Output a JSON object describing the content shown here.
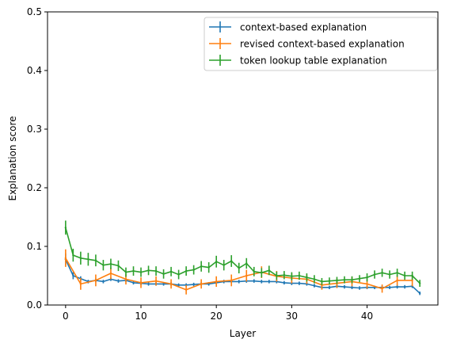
{
  "chart_data": {
    "type": "line",
    "title": "",
    "xlabel": "Layer",
    "ylabel": "Explanation score",
    "xlim": [
      -2.4,
      49.4
    ],
    "ylim": [
      0,
      0.5
    ],
    "xticks": [
      0,
      10,
      20,
      30,
      40
    ],
    "yticks": [
      0.0,
      0.1,
      0.2,
      0.3,
      0.4,
      0.5
    ],
    "xtick_labels": [
      "0",
      "10",
      "20",
      "30",
      "40"
    ],
    "ytick_labels": [
      "0.0",
      "0.1",
      "0.2",
      "0.3",
      "0.4",
      "0.5"
    ],
    "grid": false,
    "legend_position": "top-right",
    "series": [
      {
        "name": "context-based explanation",
        "color": "#1f77b4",
        "x": [
          0,
          1,
          2,
          3,
          4,
          5,
          6,
          7,
          8,
          9,
          10,
          11,
          12,
          13,
          14,
          15,
          16,
          17,
          18,
          19,
          20,
          21,
          22,
          23,
          24,
          25,
          26,
          27,
          28,
          29,
          30,
          31,
          32,
          33,
          34,
          35,
          36,
          37,
          38,
          39,
          40,
          41,
          42,
          43,
          44,
          45,
          46,
          47
        ],
        "y": [
          0.078,
          0.05,
          0.045,
          0.04,
          0.042,
          0.04,
          0.044,
          0.041,
          0.042,
          0.038,
          0.037,
          0.036,
          0.036,
          0.036,
          0.036,
          0.034,
          0.034,
          0.035,
          0.036,
          0.036,
          0.038,
          0.04,
          0.04,
          0.04,
          0.041,
          0.041,
          0.04,
          0.04,
          0.04,
          0.038,
          0.037,
          0.037,
          0.036,
          0.033,
          0.03,
          0.03,
          0.032,
          0.031,
          0.03,
          0.029,
          0.03,
          0.03,
          0.03,
          0.03,
          0.031,
          0.031,
          0.032,
          0.02
        ],
        "err": [
          0.01,
          0.006,
          0.004,
          0.003,
          0.003,
          0.003,
          0.003,
          0.003,
          0.003,
          0.003,
          0.003,
          0.003,
          0.003,
          0.003,
          0.003,
          0.003,
          0.003,
          0.003,
          0.003,
          0.003,
          0.003,
          0.003,
          0.003,
          0.003,
          0.003,
          0.003,
          0.003,
          0.003,
          0.003,
          0.003,
          0.003,
          0.003,
          0.003,
          0.003,
          0.003,
          0.003,
          0.003,
          0.003,
          0.003,
          0.003,
          0.003,
          0.003,
          0.003,
          0.003,
          0.003,
          0.003,
          0.003,
          0.003
        ]
      },
      {
        "name": "revised context-based explanation",
        "color": "#ff7f0e",
        "x": [
          0,
          2,
          4,
          6,
          8,
          10,
          12,
          14,
          16,
          18,
          20,
          22,
          24,
          26,
          28,
          30,
          32,
          34,
          36,
          38,
          40,
          42,
          44,
          46
        ],
        "y": [
          0.08,
          0.036,
          0.042,
          0.054,
          0.044,
          0.038,
          0.041,
          0.036,
          0.026,
          0.036,
          0.04,
          0.042,
          0.05,
          0.056,
          0.049,
          0.046,
          0.044,
          0.034,
          0.037,
          0.04,
          0.036,
          0.028,
          0.042,
          0.042
        ],
        "err": [
          0.015,
          0.01,
          0.01,
          0.01,
          0.009,
          0.009,
          0.008,
          0.008,
          0.008,
          0.008,
          0.009,
          0.01,
          0.01,
          0.01,
          0.009,
          0.009,
          0.008,
          0.008,
          0.008,
          0.008,
          0.008,
          0.007,
          0.009,
          0.01
        ]
      },
      {
        "name": "token lookup table explanation",
        "color": "#2ca02c",
        "x": [
          0,
          1,
          2,
          3,
          4,
          5,
          6,
          7,
          8,
          9,
          10,
          11,
          12,
          13,
          14,
          15,
          16,
          17,
          18,
          19,
          20,
          21,
          22,
          23,
          24,
          25,
          26,
          27,
          28,
          29,
          30,
          31,
          32,
          33,
          34,
          35,
          36,
          37,
          38,
          39,
          40,
          41,
          42,
          43,
          44,
          45,
          46,
          47
        ],
        "y": [
          0.132,
          0.085,
          0.08,
          0.078,
          0.076,
          0.068,
          0.07,
          0.067,
          0.056,
          0.058,
          0.056,
          0.059,
          0.058,
          0.053,
          0.057,
          0.052,
          0.058,
          0.06,
          0.066,
          0.064,
          0.074,
          0.068,
          0.075,
          0.063,
          0.071,
          0.057,
          0.055,
          0.059,
          0.05,
          0.051,
          0.049,
          0.05,
          0.047,
          0.044,
          0.04,
          0.041,
          0.042,
          0.043,
          0.043,
          0.045,
          0.047,
          0.052,
          0.055,
          0.052,
          0.055,
          0.05,
          0.05,
          0.037
        ],
        "err": [
          0.012,
          0.011,
          0.011,
          0.011,
          0.01,
          0.009,
          0.009,
          0.009,
          0.008,
          0.008,
          0.008,
          0.008,
          0.008,
          0.008,
          0.008,
          0.008,
          0.008,
          0.008,
          0.009,
          0.009,
          0.01,
          0.009,
          0.01,
          0.009,
          0.009,
          0.008,
          0.008,
          0.008,
          0.007,
          0.007,
          0.007,
          0.007,
          0.007,
          0.007,
          0.006,
          0.006,
          0.006,
          0.006,
          0.006,
          0.006,
          0.007,
          0.007,
          0.007,
          0.007,
          0.007,
          0.007,
          0.007,
          0.006
        ]
      }
    ]
  }
}
